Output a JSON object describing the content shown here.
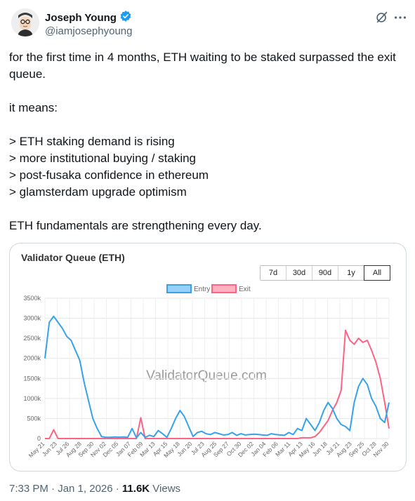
{
  "author": {
    "display_name": "Joseph Young",
    "handle": "@iamjosephyoung",
    "verified": true
  },
  "icons": [
    "verified-badge-icon",
    "grok-icon",
    "more-icon"
  ],
  "tweet": {
    "text": "for the first time in 4 months, ETH waiting to be staked surpassed the exit queue.\n\nit means:\n\n> ETH staking demand is rising\n> more institutional buying / staking\n> post-fusaka confidence in ethereum\n> glamsterdam upgrade optimism\n\nETH fundamentals are strengthening every day."
  },
  "footer": {
    "time": "7:33 PM · Jan 1, 2026 · ",
    "views_count": "11.6K",
    "views_label": " Views"
  },
  "chart_data": {
    "type": "line",
    "title": "Validator Queue (ETH)",
    "watermark": "ValidatorQueue.com",
    "range_buttons": [
      "7d",
      "30d",
      "90d",
      "1y",
      "All"
    ],
    "active_range": "All",
    "legend": [
      "Entry",
      "Exit"
    ],
    "legend_position": "top-center",
    "colors": {
      "Entry": "#36a2eb",
      "Exit": "#ff6384"
    },
    "ylim": [
      0,
      3500
    ],
    "yticks": [
      "0",
      "500k",
      "1000k",
      "1500k",
      "2000k",
      "2500k",
      "3000k",
      "3500k"
    ],
    "xticks": [
      "May 21",
      "Jun 23",
      "Jul 26",
      "Aug 28",
      "Sep 30",
      "Nov 02",
      "Dec 05",
      "Jan 07",
      "Feb 09",
      "Mar 13",
      "Apr 15",
      "May 18",
      "Jun 20",
      "Jul 23",
      "Aug 25",
      "Sep 27",
      "Oct 30",
      "Dec 02",
      "Jan 04",
      "Feb 06",
      "Mar 11",
      "Apr 13",
      "May 16",
      "Jun 18",
      "Jul 21",
      "Aug 23",
      "Sep 25",
      "Oct 28",
      "Nov 30"
    ],
    "series": [
      {
        "name": "Entry",
        "values": [
          2000,
          2900,
          3050,
          2900,
          2750,
          2550,
          2450,
          2200,
          1950,
          1400,
          950,
          500,
          250,
          50,
          30,
          30,
          40,
          35,
          40,
          30,
          250,
          20,
          150,
          30,
          80,
          50,
          200,
          120,
          30,
          250,
          500,
          700,
          550,
          300,
          50,
          150,
          180,
          120,
          100,
          150,
          120,
          90,
          100,
          150,
          80,
          120,
          90,
          100,
          110,
          100,
          90,
          80,
          120,
          100,
          90,
          80,
          150,
          100,
          250,
          200,
          500,
          350,
          200,
          400,
          700,
          900,
          750,
          500,
          350,
          300,
          200,
          900,
          1300,
          1500,
          1350,
          1000,
          800,
          500,
          400,
          900
        ]
      },
      {
        "name": "Exit",
        "values": [
          0,
          0,
          220,
          0,
          0,
          0,
          0,
          0,
          0,
          0,
          0,
          0,
          0,
          0,
          0,
          0,
          0,
          0,
          0,
          0,
          0,
          0,
          520,
          0,
          0,
          0,
          0,
          0,
          0,
          0,
          0,
          0,
          0,
          0,
          0,
          0,
          0,
          0,
          0,
          0,
          0,
          0,
          0,
          0,
          0,
          0,
          0,
          0,
          0,
          0,
          0,
          0,
          0,
          0,
          0,
          0,
          0,
          0,
          0,
          20,
          20,
          20,
          50,
          150,
          300,
          450,
          700,
          900,
          1200,
          2700,
          2450,
          2350,
          2500,
          2400,
          2450,
          2200,
          1900,
          1500,
          900,
          250
        ]
      }
    ]
  }
}
